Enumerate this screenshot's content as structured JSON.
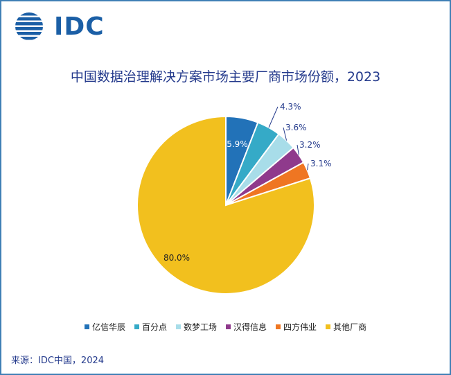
{
  "logo": {
    "text": "IDC"
  },
  "chart_data": {
    "type": "pie",
    "title": "中国数据治理解决方案市场主要厂商市场份额，2023",
    "series": [
      {
        "name": "亿信华辰",
        "value": 5.9,
        "label": "5.9%",
        "color": "#2272b8"
      },
      {
        "name": "百分点",
        "value": 4.3,
        "label": "4.3%",
        "color": "#35aac7"
      },
      {
        "name": "数梦工场",
        "value": 3.6,
        "label": "3.6%",
        "color": "#a8dde9"
      },
      {
        "name": "汉得信息",
        "value": 3.2,
        "label": "3.2%",
        "color": "#8f3a8c"
      },
      {
        "name": "四方伟业",
        "value": 3.1,
        "label": "3.1%",
        "color": "#ef7622"
      },
      {
        "name": "其他厂商",
        "value": 80.0,
        "label": "80.0%",
        "color": "#f2c01e"
      }
    ],
    "legend_position": "bottom"
  },
  "source": "来源：IDC中国，2024"
}
